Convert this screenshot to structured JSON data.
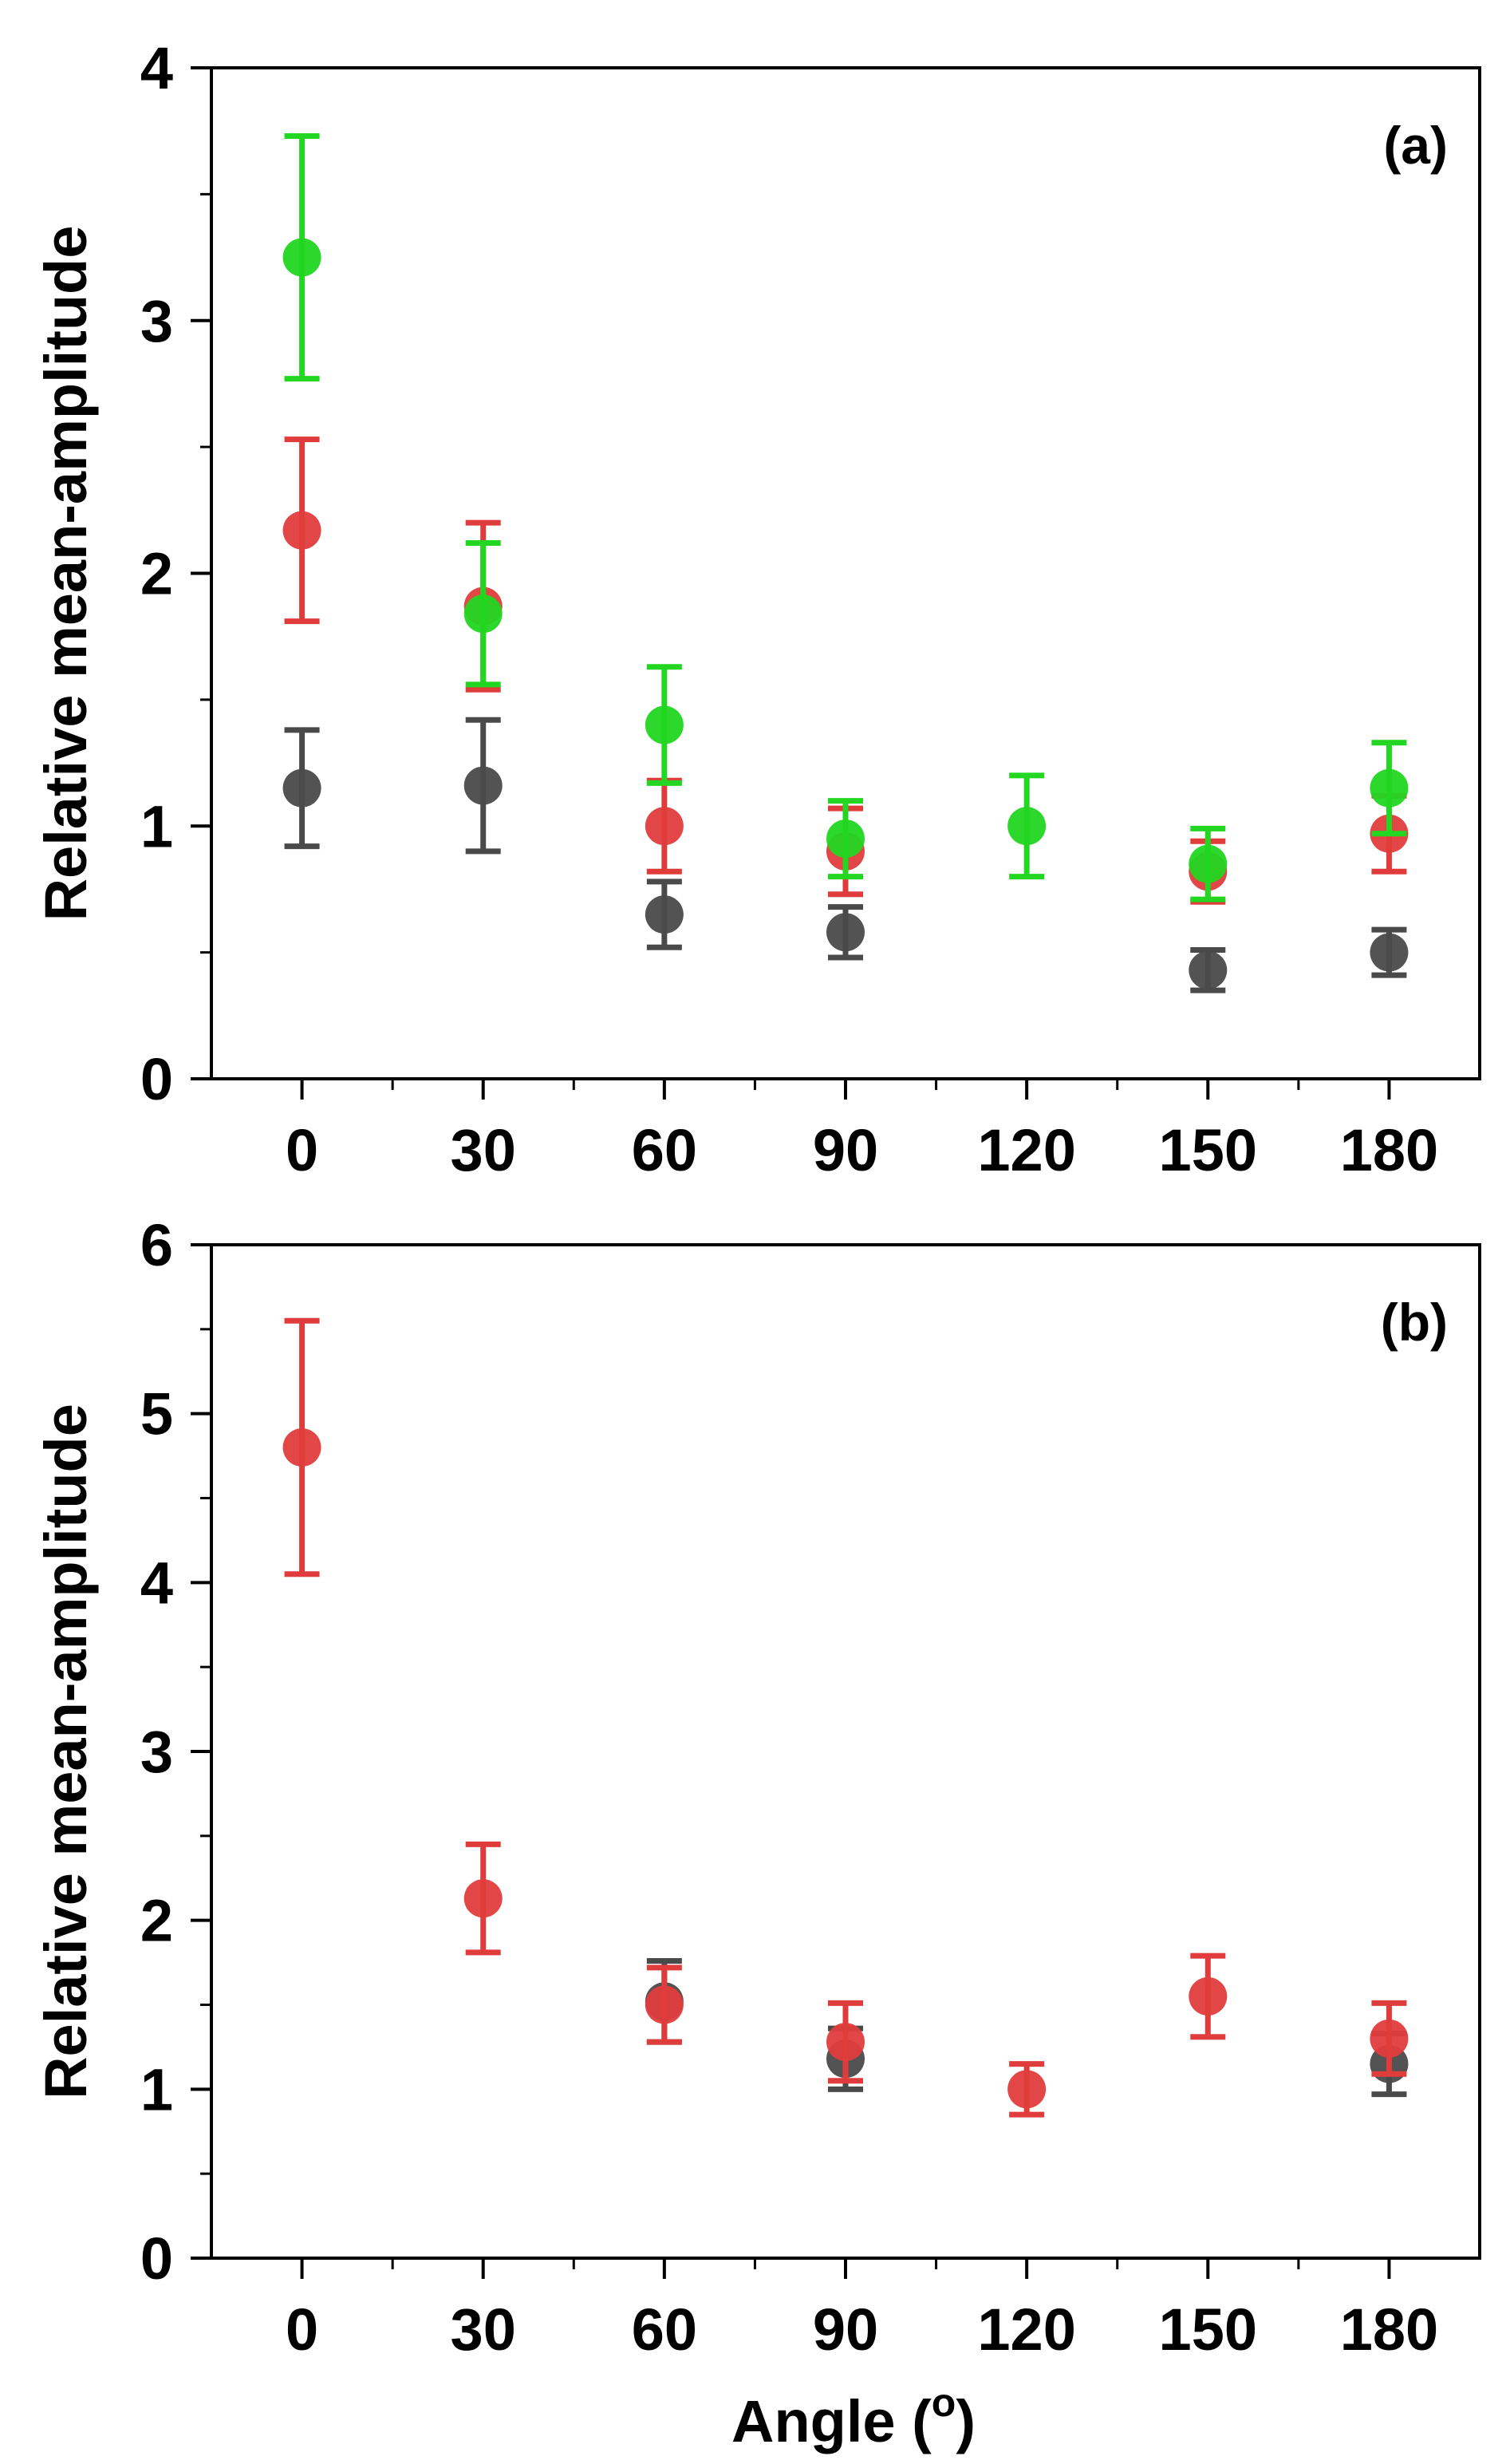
{
  "chart_data": [
    {
      "panel_label": "(a)",
      "type": "scatter",
      "ylabel": "Relative mean-amplitude",
      "xlabel": "",
      "xlim": [
        -15,
        195
      ],
      "ylim": [
        0,
        4
      ],
      "xticks": [
        "0",
        "30",
        "60",
        "90",
        "120",
        "150",
        "180"
      ],
      "yticks": [
        "0",
        "1",
        "2",
        "3",
        "4"
      ],
      "grid": false,
      "series": [
        {
          "color": "#4a4a4a",
          "marker": "circle",
          "points": [
            {
              "x": 0,
              "y": 1.15,
              "err": 0.23
            },
            {
              "x": 30,
              "y": 1.16,
              "err": 0.26
            },
            {
              "x": 60,
              "y": 0.65,
              "err": 0.13
            },
            {
              "x": 90,
              "y": 0.58,
              "err": 0.1
            },
            {
              "x": 150,
              "y": 0.43,
              "err": 0.08
            },
            {
              "x": 180,
              "y": 0.5,
              "err": 0.09
            }
          ]
        },
        {
          "color": "#e03c3c",
          "marker": "circle",
          "points": [
            {
              "x": 0,
              "y": 2.17,
              "err": 0.36
            },
            {
              "x": 30,
              "y": 1.87,
              "err": 0.33
            },
            {
              "x": 60,
              "y": 1.0,
              "err": 0.18
            },
            {
              "x": 90,
              "y": 0.9,
              "err": 0.17
            },
            {
              "x": 150,
              "y": 0.82,
              "err": 0.12
            },
            {
              "x": 180,
              "y": 0.97,
              "err": 0.15
            }
          ]
        },
        {
          "color": "#22d622",
          "marker": "circle",
          "points": [
            {
              "x": 0,
              "y": 3.25,
              "err": 0.48
            },
            {
              "x": 30,
              "y": 1.84,
              "err": 0.28
            },
            {
              "x": 60,
              "y": 1.4,
              "err": 0.23
            },
            {
              "x": 90,
              "y": 0.95,
              "err": 0.15
            },
            {
              "x": 120,
              "y": 1.0,
              "err": 0.2
            },
            {
              "x": 150,
              "y": 0.85,
              "err": 0.14
            },
            {
              "x": 180,
              "y": 1.15,
              "err": 0.18
            }
          ]
        }
      ]
    },
    {
      "panel_label": "(b)",
      "type": "scatter",
      "ylabel": "Relative mean-amplitude",
      "xlabel": "Angle (o)",
      "xlabel_main": "Angle (",
      "xlabel_sup": "o",
      "xlabel_end": ")",
      "xlim": [
        -15,
        195
      ],
      "ylim": [
        0,
        6
      ],
      "xticks": [
        "0",
        "30",
        "60",
        "90",
        "120",
        "150",
        "180"
      ],
      "yticks": [
        "0",
        "1",
        "2",
        "3",
        "4",
        "5",
        "6"
      ],
      "grid": false,
      "series": [
        {
          "color": "#4a4a4a",
          "marker": "circle",
          "points": [
            {
              "x": 60,
              "y": 1.52,
              "err": 0.24
            },
            {
              "x": 90,
              "y": 1.18,
              "err": 0.18
            },
            {
              "x": 180,
              "y": 1.15,
              "err": 0.18
            }
          ]
        },
        {
          "color": "#e03c3c",
          "marker": "circle",
          "points": [
            {
              "x": 0,
              "y": 4.8,
              "err": 0.75
            },
            {
              "x": 30,
              "y": 2.13,
              "err": 0.32
            },
            {
              "x": 60,
              "y": 1.5,
              "err": 0.22
            },
            {
              "x": 90,
              "y": 1.28,
              "err": 0.23
            },
            {
              "x": 120,
              "y": 1.0,
              "err": 0.15
            },
            {
              "x": 150,
              "y": 1.55,
              "err": 0.24
            },
            {
              "x": 180,
              "y": 1.3,
              "err": 0.21
            }
          ]
        }
      ]
    }
  ]
}
